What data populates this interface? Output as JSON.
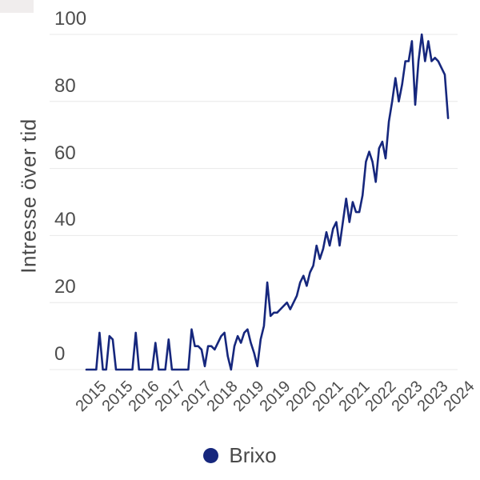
{
  "axis": {
    "ylabel": "Intresse över tid"
  },
  "legend": {
    "label": "Brixo",
    "dot_color": "#16277d"
  },
  "colors": {
    "line": "#16277d",
    "gridline": "#e8e8e8",
    "text": "#4d4d4d"
  },
  "chart_data": {
    "type": "line",
    "title": "",
    "xlabel": "",
    "ylabel": "Intresse över tid",
    "ylim": [
      0,
      100
    ],
    "yticks": [
      0,
      20,
      40,
      60,
      80,
      100
    ],
    "grid": true,
    "legend_position": "bottom",
    "x_start": "2015-01",
    "x_step": "month",
    "xtick_every_n_points": 8,
    "xticklabels": [
      "2015",
      "2015",
      "2016",
      "2017",
      "2017",
      "2018",
      "2019",
      "2019",
      "2020",
      "2021",
      "2021",
      "2022",
      "2023",
      "2023",
      "2024"
    ],
    "series": [
      {
        "name": "Brixo",
        "color": "#16277d",
        "values": [
          0,
          0,
          0,
          0,
          11,
          0,
          0,
          10,
          9,
          0,
          0,
          0,
          0,
          0,
          0,
          11,
          0,
          0,
          0,
          0,
          0,
          8,
          0,
          0,
          0,
          9,
          0,
          0,
          0,
          0,
          0,
          0,
          12,
          7,
          7,
          6,
          1,
          7,
          7,
          6,
          8,
          10,
          11,
          4,
          0,
          7,
          10,
          8,
          11,
          12,
          8,
          5,
          1,
          9,
          13,
          26,
          16,
          17,
          17,
          18,
          19,
          20,
          18,
          20,
          22,
          26,
          28,
          25,
          29,
          31,
          37,
          33,
          36,
          41,
          37,
          42,
          44,
          37,
          44,
          51,
          44,
          50,
          47,
          47,
          52,
          62,
          65,
          62,
          56,
          66,
          68,
          63,
          74,
          80,
          87,
          80,
          85,
          92,
          92,
          98,
          79,
          92,
          100,
          92,
          98,
          92,
          93,
          92,
          90,
          88,
          75
        ]
      }
    ]
  }
}
